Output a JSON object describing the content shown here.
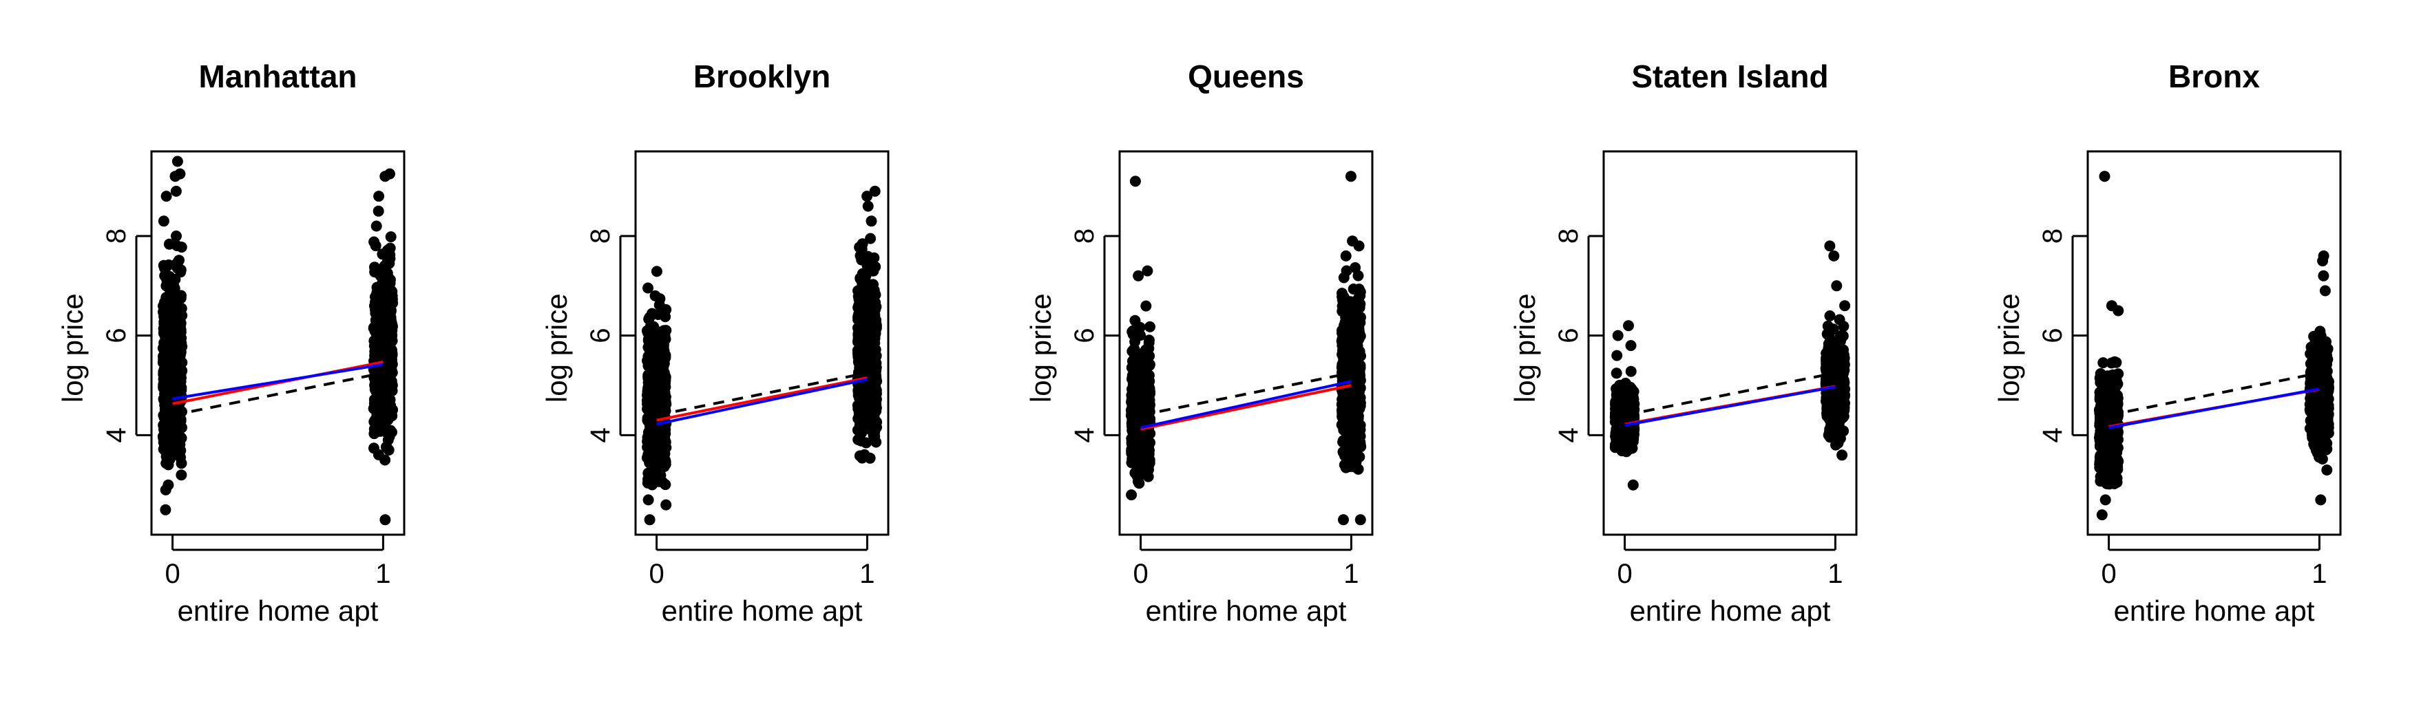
{
  "figure": {
    "colors": {
      "points": "#000000",
      "red_line": "#ff0000",
      "blue_line": "#0000ff",
      "dashed_line": "#000000"
    }
  },
  "chart_data": [
    {
      "type": "scatter",
      "title": "Manhattan",
      "xlabel": "entire home apt",
      "ylabel": "log price",
      "xticks": [
        "0",
        "1"
      ],
      "yticks": [
        "4",
        "6",
        "8"
      ],
      "xlim": [
        -0.1,
        1.1
      ],
      "ylim": [
        2,
        9.7
      ],
      "categories": [
        0,
        1
      ],
      "groups": [
        {
          "x": 0,
          "core_range": [
            3.4,
            7.9
          ],
          "dense_range": [
            3.8,
            6.8
          ],
          "sparse_points": [
            2.5,
            2.9,
            3.0,
            3.2,
            8.0,
            8.3,
            8.8,
            8.9,
            9.2,
            9.25,
            9.5
          ]
        },
        {
          "x": 1,
          "core_range": [
            3.6,
            8.0
          ],
          "dense_range": [
            4.3,
            7.0
          ],
          "sparse_points": [
            2.3,
            3.5,
            3.7,
            8.2,
            8.5,
            8.8,
            9.2,
            9.25
          ]
        }
      ],
      "series": [
        {
          "name": "",
          "style": "dashed",
          "color": "#000000",
          "values": [
            4.4,
            5.25
          ]
        },
        {
          "name": "",
          "style": "solid",
          "color": "#ff0000",
          "values": [
            4.63,
            5.47
          ]
        },
        {
          "name": "",
          "style": "solid",
          "color": "#0000ff",
          "values": [
            4.73,
            5.42
          ]
        }
      ]
    },
    {
      "type": "scatter",
      "title": "Brooklyn",
      "xlabel": "entire home apt",
      "ylabel": "log price",
      "xticks": [
        "0",
        "1"
      ],
      "yticks": [
        "4",
        "6",
        "8"
      ],
      "xlim": [
        -0.1,
        1.1
      ],
      "ylim": [
        2,
        9.7
      ],
      "categories": [
        0,
        1
      ],
      "groups": [
        {
          "x": 0,
          "core_range": [
            3.0,
            7.3
          ],
          "dense_range": [
            3.5,
            6.0
          ],
          "sparse_points": [
            2.3,
            2.6,
            2.7
          ]
        },
        {
          "x": 1,
          "core_range": [
            3.5,
            8.0
          ],
          "dense_range": [
            4.0,
            6.8
          ],
          "sparse_points": [
            8.3,
            8.6,
            8.8,
            8.9
          ]
        }
      ],
      "series": [
        {
          "name": "",
          "style": "dashed",
          "color": "#000000",
          "values": [
            4.4,
            5.25
          ]
        },
        {
          "name": "",
          "style": "solid",
          "color": "#ff0000",
          "values": [
            4.3,
            5.15
          ]
        },
        {
          "name": "",
          "style": "solid",
          "color": "#0000ff",
          "values": [
            4.22,
            5.12
          ]
        }
      ]
    },
    {
      "type": "scatter",
      "title": "Queens",
      "xlabel": "entire home apt",
      "ylabel": "log price",
      "xticks": [
        "0",
        "1"
      ],
      "yticks": [
        "4",
        "6",
        "8"
      ],
      "xlim": [
        -0.1,
        1.1
      ],
      "ylim": [
        2,
        9.7
      ],
      "categories": [
        0,
        1
      ],
      "groups": [
        {
          "x": 0,
          "core_range": [
            3.0,
            6.8
          ],
          "dense_range": [
            3.4,
            5.5
          ],
          "sparse_points": [
            2.8,
            7.2,
            7.3,
            9.1
          ]
        },
        {
          "x": 1,
          "core_range": [
            3.3,
            7.6
          ],
          "dense_range": [
            3.8,
            6.5
          ],
          "sparse_points": [
            2.3,
            2.3,
            7.8,
            7.9,
            9.2
          ]
        }
      ],
      "series": [
        {
          "name": "",
          "style": "dashed",
          "color": "#000000",
          "values": [
            4.4,
            5.25
          ]
        },
        {
          "name": "",
          "style": "solid",
          "color": "#ff0000",
          "values": [
            4.12,
            5.0
          ]
        },
        {
          "name": "",
          "style": "solid",
          "color": "#0000ff",
          "values": [
            4.15,
            5.08
          ]
        }
      ]
    },
    {
      "type": "scatter",
      "title": "Staten Island",
      "xlabel": "entire home apt",
      "ylabel": "log price",
      "xticks": [
        "0",
        "1"
      ],
      "yticks": [
        "4",
        "6",
        "8"
      ],
      "xlim": [
        -0.1,
        1.1
      ],
      "ylim": [
        2,
        9.7
      ],
      "categories": [
        0,
        1
      ],
      "groups": [
        {
          "x": 0,
          "core_range": [
            3.6,
            5.4
          ],
          "dense_range": [
            3.9,
            4.8
          ],
          "sparse_points": [
            3.0,
            5.6,
            5.8,
            6.0,
            6.2
          ]
        },
        {
          "x": 1,
          "core_range": [
            3.7,
            6.4
          ],
          "dense_range": [
            4.3,
            5.7
          ],
          "sparse_points": [
            3.6,
            6.6,
            7.0,
            7.6,
            7.8
          ]
        }
      ],
      "series": [
        {
          "name": "",
          "style": "dashed",
          "color": "#000000",
          "values": [
            4.4,
            5.25
          ]
        },
        {
          "name": "",
          "style": "solid",
          "color": "#ff0000",
          "values": [
            4.22,
            4.98
          ]
        },
        {
          "name": "",
          "style": "solid",
          "color": "#0000ff",
          "values": [
            4.2,
            4.97
          ]
        }
      ]
    },
    {
      "type": "scatter",
      "title": "Bronx",
      "xlabel": "entire home apt",
      "ylabel": "log price",
      "xticks": [
        "0",
        "1"
      ],
      "yticks": [
        "4",
        "6",
        "8"
      ],
      "xlim": [
        -0.1,
        1.1
      ],
      "ylim": [
        2,
        9.7
      ],
      "categories": [
        0,
        1
      ],
      "groups": [
        {
          "x": 0,
          "core_range": [
            3.0,
            5.6
          ],
          "dense_range": [
            3.4,
            4.9
          ],
          "sparse_points": [
            2.4,
            2.7,
            6.5,
            6.6,
            9.2
          ]
        },
        {
          "x": 1,
          "core_range": [
            3.5,
            6.6
          ],
          "dense_range": [
            4.0,
            5.6
          ],
          "sparse_points": [
            2.7,
            3.3,
            6.9,
            7.2,
            7.5,
            7.6
          ]
        }
      ],
      "series": [
        {
          "name": "",
          "style": "dashed",
          "color": "#000000",
          "values": [
            4.4,
            5.25
          ]
        },
        {
          "name": "",
          "style": "solid",
          "color": "#ff0000",
          "values": [
            4.17,
            4.92
          ]
        },
        {
          "name": "",
          "style": "solid",
          "color": "#0000ff",
          "values": [
            4.15,
            4.93
          ]
        }
      ]
    }
  ]
}
